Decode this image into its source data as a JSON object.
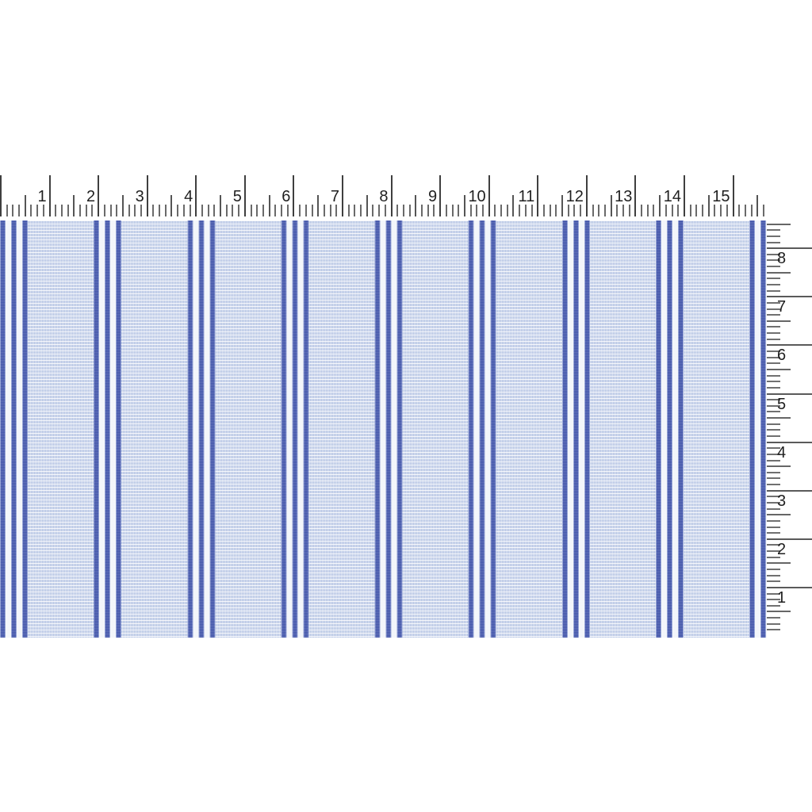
{
  "image": {
    "description": "Woven blue ticking-stripe fabric swatch shown with inch rulers on top and right",
    "background_color": "#ffffff"
  },
  "horizontal_ruler": {
    "unit": "inch",
    "labels": [
      "1",
      "2",
      "3",
      "4",
      "5",
      "6",
      "7",
      "8",
      "9",
      "10",
      "11",
      "12",
      "13",
      "14",
      "15"
    ],
    "tick_color": "#3f3f3f",
    "number_color": "#1f1f1f"
  },
  "vertical_ruler": {
    "unit": "inch",
    "labels": [
      "8",
      "7",
      "6",
      "5",
      "4",
      "3",
      "2",
      "1"
    ],
    "tick_color": "#5a5a5a",
    "number_color": "#1f1f1f"
  },
  "fabric": {
    "pattern": "triple royal-blue stripes on pale blue check weave, repeat about 2 inches",
    "colors": {
      "stripe": "#4356ab",
      "stripe_edge": "#8d9cd2",
      "stripe_gap": "#f2f5fa",
      "panel_base": "#b0c0e2",
      "weave_line": "#ffffff"
    }
  }
}
